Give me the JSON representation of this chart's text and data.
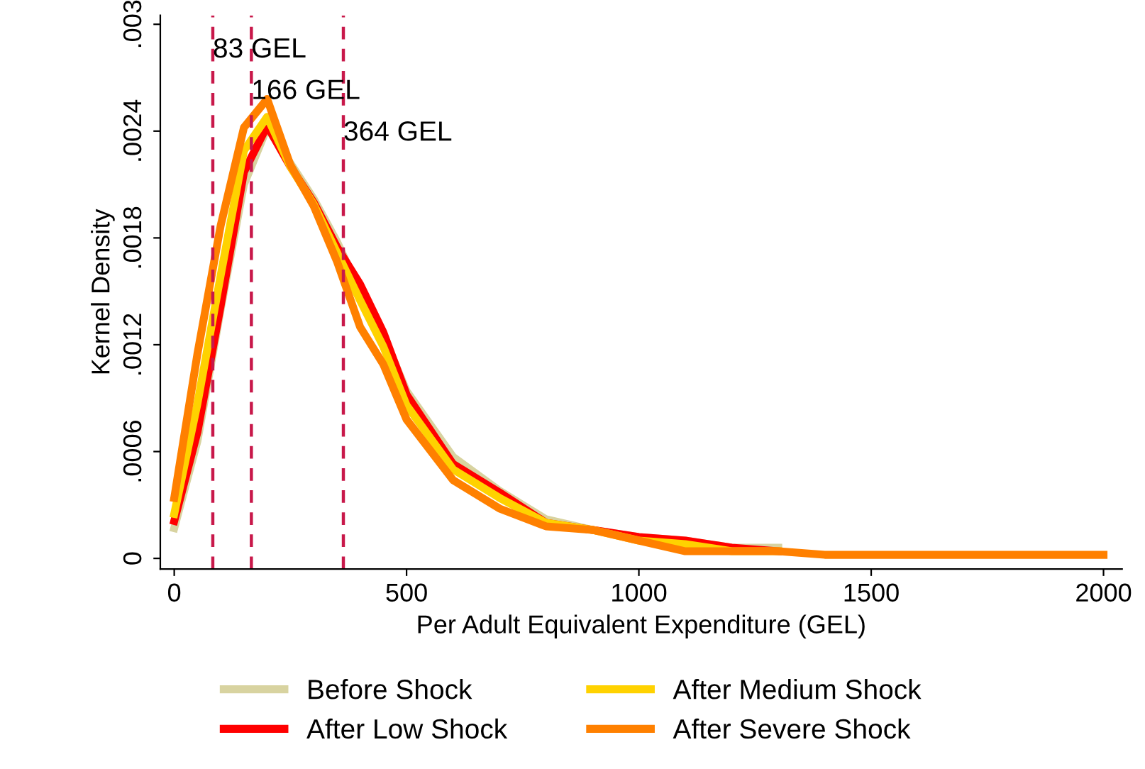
{
  "chart_data": {
    "type": "line",
    "xlabel": "Per Adult Equivalent Expenditure (GEL)",
    "ylabel": "Kernel Density",
    "xlim": [
      -30,
      2040
    ],
    "xticks": [
      0,
      500,
      1000,
      1500,
      2000
    ],
    "ylim": [
      -6e-05,
      0.00305
    ],
    "yticks": [
      0,
      {
        "value": 0.0006,
        "label": ".0006"
      },
      {
        "value": 0.0012,
        "label": ".0012"
      },
      {
        "value": 0.0018,
        "label": ".0018"
      },
      {
        "value": 0.0024,
        "label": ".0024"
      },
      {
        "value": 0.003,
        "label": ".003"
      }
    ],
    "grid": false,
    "legend": "bottom",
    "marker": "none",
    "line_style": "solid",
    "x": [
      0,
      50,
      100,
      150,
      200,
      250,
      300,
      350,
      400,
      450,
      500,
      600,
      700,
      800,
      900,
      1000,
      1100,
      1200,
      1300,
      1400,
      1500,
      1600,
      1800,
      2000
    ],
    "series": [
      {
        "name": "Before Shock",
        "color": "#d8d3a0",
        "values": [
          0.00017,
          0.00066,
          0.0014,
          0.0021,
          0.00242,
          0.00222,
          0.00202,
          0.00178,
          0.0015,
          0.00125,
          0.00094,
          0.00057,
          0.00038,
          0.00022,
          0.00016,
          0.00012,
          0.0001,
          6e-05,
          6e-05,
          null,
          null,
          null,
          null,
          null
        ]
      },
      {
        "name": "After Low Shock",
        "color": "#ff0000",
        "values": [
          0.00021,
          0.00071,
          0.00142,
          0.00217,
          0.00243,
          0.0022,
          0.002,
          0.00175,
          0.00154,
          0.00127,
          0.00092,
          0.00053,
          0.00037,
          0.0002,
          0.00016,
          0.00012,
          0.0001,
          6e-05,
          4e-05,
          null,
          null,
          null,
          null,
          null
        ]
      },
      {
        "name": "After Medium Shock",
        "color": "#ffd200",
        "values": [
          0.00025,
          0.00087,
          0.00159,
          0.00229,
          0.00248,
          0.0022,
          0.00199,
          0.00172,
          0.00145,
          0.00119,
          0.00086,
          0.0005,
          0.00034,
          0.0002,
          0.00016,
          0.0001,
          8e-05,
          4e-05,
          4e-05,
          null,
          null,
          null,
          null,
          null
        ]
      },
      {
        "name": "After Severe Shock",
        "color": "#ff8000",
        "values": [
          0.00034,
          0.00115,
          0.00187,
          0.00242,
          0.00258,
          0.00221,
          0.00198,
          0.00167,
          0.0013,
          0.00109,
          0.00078,
          0.00044,
          0.00028,
          0.00018,
          0.00016,
          0.0001,
          4e-05,
          4e-05,
          4e-05,
          2e-05,
          2e-05,
          2e-05,
          2e-05,
          2e-05
        ]
      }
    ],
    "ref_lines": [
      {
        "axis": "x",
        "value": 83,
        "label": "83 GEL",
        "color": "#c8184a",
        "line_style": "dashed"
      },
      {
        "axis": "x",
        "value": 166,
        "label": "166 GEL",
        "color": "#c8184a",
        "line_style": "dashed"
      },
      {
        "axis": "x",
        "value": 364,
        "label": "364 GEL",
        "color": "#c8184a",
        "line_style": "dashed"
      }
    ]
  }
}
